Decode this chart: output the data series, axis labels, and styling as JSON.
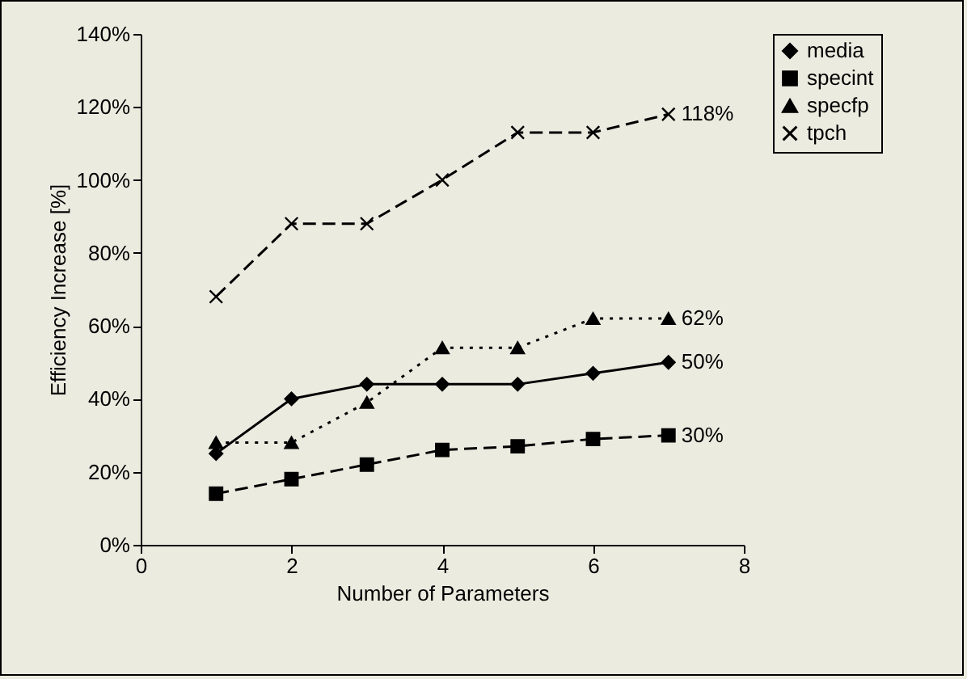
{
  "chart_data": {
    "type": "line",
    "xlabel": "Number of Parameters",
    "ylabel": "Efficiency Increase [%]",
    "x": [
      1,
      2,
      3,
      4,
      5,
      6,
      7
    ],
    "series": [
      {
        "name": "media",
        "color": "#000000",
        "marker": "diamond",
        "line_style": "solid",
        "values": [
          25,
          40,
          44,
          44,
          44,
          47,
          50
        ],
        "value_labels": [
          null,
          null,
          null,
          null,
          null,
          null,
          "50%"
        ]
      },
      {
        "name": "specint",
        "color": "#000000",
        "marker": "square",
        "line_style": "dashed",
        "values": [
          14,
          18,
          22,
          26,
          27,
          29,
          30
        ],
        "value_labels": [
          null,
          null,
          null,
          null,
          null,
          null,
          "30%"
        ]
      },
      {
        "name": "specfp",
        "color": "#000000",
        "marker": "triangle",
        "line_style": "dotted",
        "values": [
          28,
          28,
          39,
          54,
          54,
          62,
          62
        ],
        "value_labels": [
          null,
          null,
          null,
          null,
          null,
          null,
          "62%"
        ]
      },
      {
        "name": "tpch",
        "color": "#000000",
        "marker": "cross",
        "line_style": "dashed",
        "values": [
          68,
          88,
          88,
          100,
          113,
          113,
          118
        ],
        "value_labels": [
          null,
          null,
          null,
          null,
          null,
          null,
          "118%"
        ]
      }
    ],
    "xlim": [
      0,
      8
    ],
    "xticks": [
      0,
      2,
      4,
      6,
      8
    ],
    "ylim": [
      0,
      140
    ],
    "yticks": [
      {
        "value": 0,
        "label": "0%"
      },
      {
        "value": 20,
        "label": "20%"
      },
      {
        "value": 40,
        "label": "40%"
      },
      {
        "value": 60,
        "label": "60%"
      },
      {
        "value": 80,
        "label": "80%"
      },
      {
        "value": 100,
        "label": "100%"
      },
      {
        "value": 120,
        "label": "120%"
      },
      {
        "value": 140,
        "label": "140%"
      }
    ],
    "grid": false,
    "legend": "right"
  }
}
